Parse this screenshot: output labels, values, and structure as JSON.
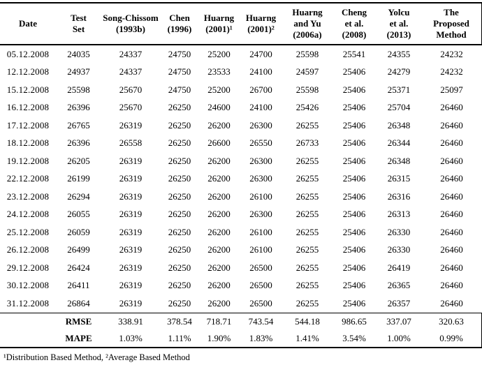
{
  "table": {
    "columns": [
      {
        "id": "date",
        "lines": [
          "Date"
        ]
      },
      {
        "id": "test-set",
        "lines": [
          "Test",
          "Set"
        ]
      },
      {
        "id": "song-chissom",
        "lines": [
          "Song-Chissom",
          "(1993b)"
        ]
      },
      {
        "id": "chen",
        "lines": [
          "Chen",
          "(1996)"
        ]
      },
      {
        "id": "huarng-2001-1",
        "lines": [
          "Huarng",
          "(2001)¹"
        ]
      },
      {
        "id": "huarng-2001-2",
        "lines": [
          "Huarng",
          "(2001)²"
        ]
      },
      {
        "id": "huarng-and-yu",
        "lines": [
          "Huarng",
          "and Yu",
          "(2006a)"
        ]
      },
      {
        "id": "cheng-et-al",
        "lines": [
          "Cheng",
          "et al.",
          "(2008)"
        ]
      },
      {
        "id": "yolcu-et-al",
        "lines": [
          "Yolcu",
          "et al.",
          "(2013)"
        ]
      },
      {
        "id": "proposed-method",
        "lines": [
          "The",
          "Proposed",
          "Method"
        ]
      }
    ],
    "rows": [
      {
        "date": "05.12.2008",
        "values": [
          "24035",
          "24337",
          "24750",
          "25200",
          "24700",
          "25598",
          "25541",
          "24355",
          "24232"
        ]
      },
      {
        "date": "12.12.2008",
        "values": [
          "24937",
          "24337",
          "24750",
          "23533",
          "24100",
          "24597",
          "25406",
          "24279",
          "24232"
        ]
      },
      {
        "date": "15.12.2008",
        "values": [
          "25598",
          "25670",
          "24750",
          "25200",
          "26700",
          "25598",
          "25406",
          "25371",
          "25097"
        ]
      },
      {
        "date": "16.12.2008",
        "values": [
          "26396",
          "25670",
          "26250",
          "24600",
          "24100",
          "25426",
          "25406",
          "25704",
          "26460"
        ]
      },
      {
        "date": "17.12.2008",
        "values": [
          "26765",
          "26319",
          "26250",
          "26200",
          "26300",
          "26255",
          "25406",
          "26348",
          "26460"
        ]
      },
      {
        "date": "18.12.2008",
        "values": [
          "26396",
          "26558",
          "26250",
          "26600",
          "26550",
          "26733",
          "25406",
          "26344",
          "26460"
        ]
      },
      {
        "date": "19.12.2008",
        "values": [
          "26205",
          "26319",
          "26250",
          "26200",
          "26300",
          "26255",
          "25406",
          "26348",
          "26460"
        ]
      },
      {
        "date": "22.12.2008",
        "values": [
          "26199",
          "26319",
          "26250",
          "26200",
          "26300",
          "26255",
          "25406",
          "26315",
          "26460"
        ]
      },
      {
        "date": "23.12.2008",
        "values": [
          "26294",
          "26319",
          "26250",
          "26200",
          "26100",
          "26255",
          "25406",
          "26316",
          "26460"
        ]
      },
      {
        "date": "24.12.2008",
        "values": [
          "26055",
          "26319",
          "26250",
          "26200",
          "26300",
          "26255",
          "25406",
          "26313",
          "26460"
        ]
      },
      {
        "date": "25.12.2008",
        "values": [
          "26059",
          "26319",
          "26250",
          "26200",
          "26100",
          "26255",
          "25406",
          "26330",
          "26460"
        ]
      },
      {
        "date": "26.12.2008",
        "values": [
          "26499",
          "26319",
          "26250",
          "26200",
          "26100",
          "26255",
          "25406",
          "26330",
          "26460"
        ]
      },
      {
        "date": "29.12.2008",
        "values": [
          "26424",
          "26319",
          "26250",
          "26200",
          "26500",
          "26255",
          "25406",
          "26419",
          "26460"
        ]
      },
      {
        "date": "30.12.2008",
        "values": [
          "26411",
          "26319",
          "26250",
          "26200",
          "26500",
          "26255",
          "25406",
          "26365",
          "26460"
        ]
      },
      {
        "date": "31.12.2008",
        "values": [
          "26864",
          "26319",
          "26250",
          "26200",
          "26500",
          "26255",
          "25406",
          "26357",
          "26460"
        ]
      }
    ],
    "stats": [
      {
        "label": "RMSE",
        "values": [
          "338.91",
          "378.54",
          "718.71",
          "743.54",
          "544.18",
          "986.65",
          "337.07",
          "320.63"
        ]
      },
      {
        "label": "MAPE",
        "values": [
          "1.03%",
          "1.11%",
          "1.90%",
          "1.83%",
          "1.41%",
          "3.54%",
          "1.00%",
          "0.99%"
        ]
      }
    ]
  },
  "footnote": "¹Distribution Based Method, ²Average Based Method",
  "colors": {
    "text": "#000000",
    "background": "#ffffff",
    "rule": "#000000"
  }
}
